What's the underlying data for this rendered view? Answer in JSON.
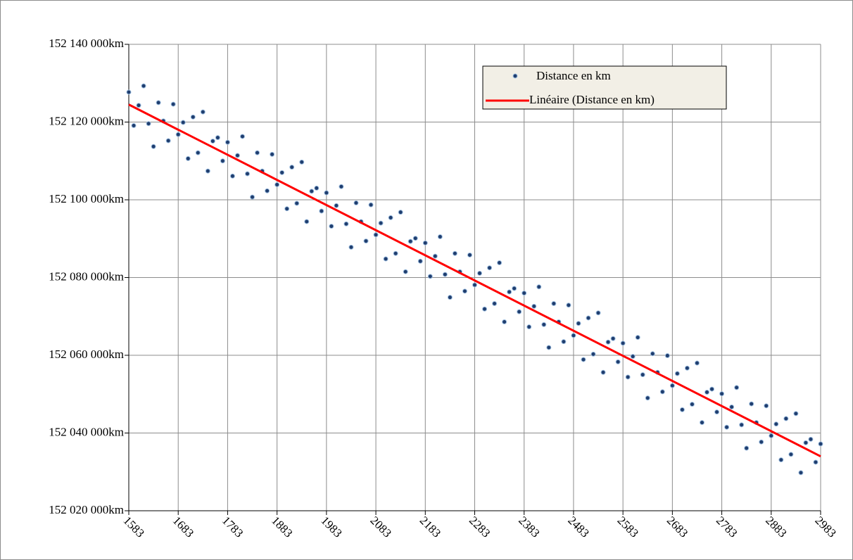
{
  "chart_data": {
    "type": "scatter",
    "series": [
      {
        "name": "Distance en km",
        "color": "#1f3d6e",
        "x": [
          1583,
          1593,
          1603,
          1613,
          1623,
          1633,
          1643,
          1653,
          1663,
          1673,
          1683,
          1693,
          1703,
          1713,
          1723,
          1733,
          1743,
          1753,
          1763,
          1773,
          1783,
          1793,
          1803,
          1813,
          1823,
          1833,
          1843,
          1853,
          1863,
          1873,
          1883,
          1893,
          1903,
          1913,
          1923,
          1933,
          1943,
          1953,
          1963,
          1973,
          1983,
          1993,
          2003,
          2013,
          2023,
          2033,
          2043,
          2053,
          2063,
          2073,
          2083,
          2093,
          2103,
          2113,
          2123,
          2133,
          2143,
          2153,
          2163,
          2173,
          2183,
          2193,
          2203,
          2213,
          2223,
          2233,
          2243,
          2253,
          2263,
          2273,
          2283,
          2293,
          2303,
          2313,
          2323,
          2333,
          2343,
          2353,
          2363,
          2373,
          2383,
          2393,
          2403,
          2413,
          2423,
          2433,
          2443,
          2453,
          2463,
          2473,
          2483,
          2493,
          2503,
          2513,
          2523,
          2533,
          2543,
          2553,
          2563,
          2573,
          2583,
          2593,
          2603,
          2613,
          2623,
          2633,
          2643,
          2653,
          2663,
          2673,
          2683,
          2693,
          2703,
          2713,
          2723,
          2733,
          2743,
          2753,
          2763,
          2773,
          2783,
          2793,
          2803,
          2813,
          2823,
          2833,
          2843,
          2853,
          2863,
          2873,
          2883,
          2893,
          2903,
          2913,
          2923,
          2933,
          2943,
          2953,
          2963,
          2973,
          2983
        ],
        "values": [
          152127700,
          152119100,
          152124300,
          152129300,
          152119600,
          152113700,
          152125000,
          152120300,
          152115200,
          152124600,
          152116800,
          152119900,
          152110600,
          152121300,
          152112100,
          152122600,
          152107400,
          152115100,
          152116000,
          152110000,
          152114800,
          152106100,
          152111400,
          152116300,
          152106700,
          152100700,
          152112100,
          152107400,
          152102300,
          152111700,
          152103900,
          152107000,
          152097700,
          152108400,
          152099100,
          152109700,
          152094400,
          152102200,
          152103000,
          152097100,
          152101800,
          152093200,
          152098500,
          152103400,
          152093800,
          152087800,
          152099200,
          152094400,
          152089400,
          152098700,
          152091000,
          152094000,
          152084800,
          152095400,
          152086200,
          152096800,
          152081500,
          152089300,
          152090100,
          152084200,
          152088900,
          152080300,
          152085500,
          152090500,
          152080800,
          152074900,
          152086200,
          152081500,
          152076500,
          152085800,
          152078100,
          152081100,
          152071900,
          152082500,
          152073300,
          152083800,
          152068600,
          152076300,
          152077200,
          152071200,
          152076000,
          152067300,
          152072600,
          152077600,
          152067900,
          152062000,
          152073300,
          152068600,
          152063500,
          152072900,
          152065100,
          152068200,
          152058900,
          152069600,
          152060300,
          152070900,
          152055600,
          152063400,
          152064300,
          152058300,
          152063100,
          152054400,
          152059700,
          152064600,
          152055000,
          152049000,
          152060400,
          152055600,
          152050600,
          152059900,
          152052200,
          152055300,
          152046000,
          152056700,
          152047400,
          152058000,
          152042700,
          152050500,
          152051300,
          152045400,
          152050100,
          152041500,
          152046700,
          152051700,
          152042100,
          152036100,
          152047500,
          152042700,
          152037700,
          152047000,
          152039300,
          152042300,
          152033100,
          152043700,
          152034500,
          152045000,
          152029800,
          152037500,
          152038400,
          152032500,
          152037200
        ]
      }
    ],
    "trendline": {
      "name": "Linéaire (Distance en km)",
      "color": "#ff0000",
      "x": [
        1583,
        2983
      ],
      "values": [
        152124500,
        152034000
      ]
    },
    "xlim": [
      1583,
      2983
    ],
    "xticks": [
      1583,
      1683,
      1783,
      1883,
      1983,
      2083,
      2183,
      2283,
      2383,
      2483,
      2583,
      2683,
      2783,
      2883,
      2983
    ],
    "ylim": [
      152020000,
      152140000
    ],
    "yticks": [
      {
        "value": 152020000,
        "label": "152 020 000km"
      },
      {
        "value": 152040000,
        "label": "152 040 000km"
      },
      {
        "value": 152060000,
        "label": "152 060 000km"
      },
      {
        "value": 152080000,
        "label": "152 080 000km"
      },
      {
        "value": 152100000,
        "label": "152 100 000km"
      },
      {
        "value": 152120000,
        "label": "152 120 000km"
      },
      {
        "value": 152140000,
        "label": "152 140 000km"
      }
    ],
    "grid": true
  }
}
